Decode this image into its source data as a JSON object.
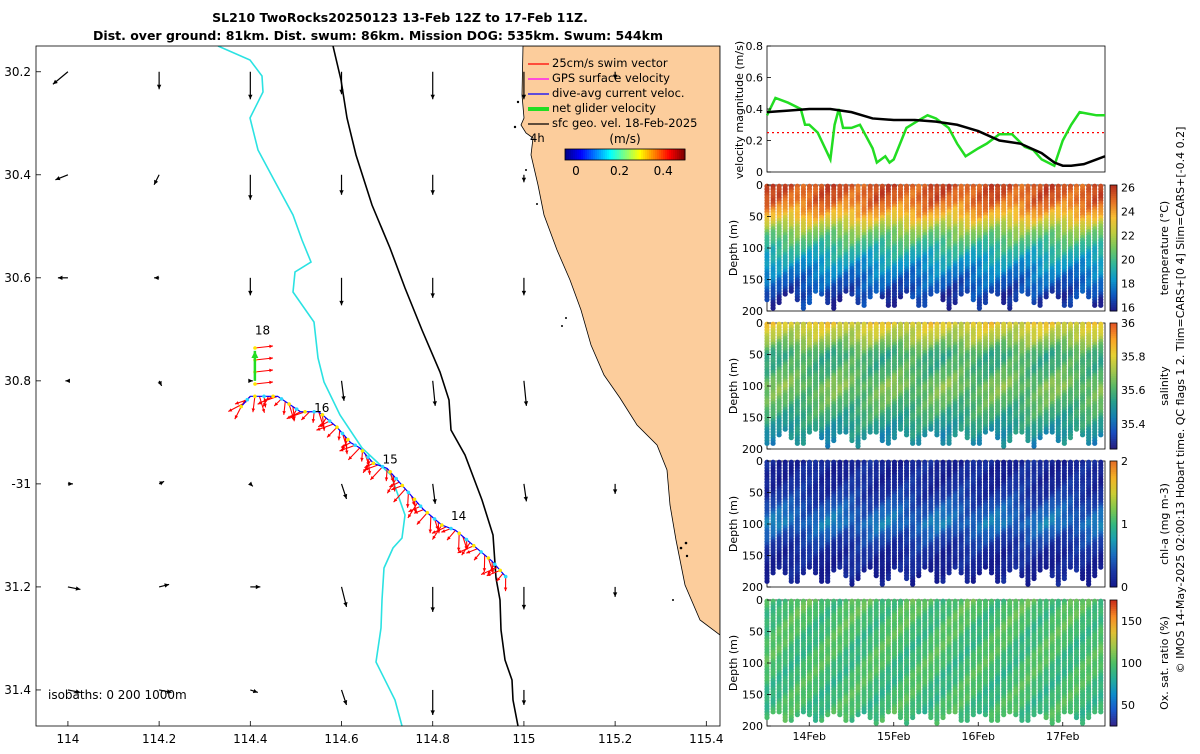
{
  "header": {
    "title_line1": "SL210 TwoRocks20250123 13-Feb 12Z to 17-Feb 11Z.",
    "title_line2": "Dist. over ground: 81km. Dist. swum: 86km. Mission DOG: 535km. Swum: 544km"
  },
  "side_caption": "© IMOS 14-May-2025 02:00:13 Hobart time. QC flags 1  2. Tlim=CARS+[0 4] Slim=CARS+[-0.4 0.2]",
  "colors": {
    "land": "#FCCD9C",
    "isobath_200": "#2BE2E2",
    "glider_track": "#FF0000",
    "net_velocity": "#22DD22",
    "threshold": "#FF0000"
  },
  "chart_data": [
    {
      "type": "map",
      "title": "SL210 TwoRocks20250123",
      "xlim": [
        113.93,
        115.43
      ],
      "ylim": [
        30.15,
        31.47
      ],
      "y_inverted": true,
      "x_ticks": [
        114,
        114.2,
        114.4,
        114.6,
        114.8,
        115,
        115.2,
        115.4
      ],
      "x_tick_labels": [
        "114",
        "114.2",
        "114.4",
        "114.6",
        "114.8",
        "115",
        "115.2",
        "115.4"
      ],
      "y_ticks": [
        30.2,
        30.4,
        30.6,
        30.8,
        31,
        31.2,
        31.4
      ],
      "y_tick_labels": [
        "30.2",
        "30.4",
        "30.6",
        "30.8",
        "-31",
        "31.2",
        "31.4"
      ],
      "legend": [
        {
          "label": "25cm/s swim vector",
          "color": "#FF0000"
        },
        {
          "label": "GPS surface velocity",
          "color": "#FF00FF"
        },
        {
          "label": "dive-avg current veloc.",
          "color": "#0000FF"
        },
        {
          "label": "net glider velocity",
          "color": "#22DD22"
        },
        {
          "label": "sfc geo. vel. 18-Feb-2025",
          "color": "#000000"
        }
      ],
      "legend_annotation": "4h",
      "colorbar": {
        "label": "(m/s)",
        "ticks": [
          0,
          0.2,
          0.4
        ],
        "range": [
          -0.05,
          0.5
        ]
      },
      "isobaths_label": "isobaths: 0   200  1000m",
      "track_day_labels": [
        {
          "label": "18",
          "lon": 114.41,
          "lat": 30.71
        },
        {
          "label": "16",
          "lon": 114.54,
          "lat": 30.86
        },
        {
          "label": "15",
          "lon": 114.69,
          "lat": 30.96
        },
        {
          "label": "14",
          "lon": 114.84,
          "lat": 31.07
        }
      ],
      "track": [
        [
          114.38,
          30.85
        ],
        [
          114.4,
          30.83
        ],
        [
          114.46,
          30.83
        ],
        [
          114.51,
          30.86
        ],
        [
          114.55,
          30.86
        ],
        [
          114.59,
          30.89
        ],
        [
          114.62,
          30.92
        ],
        [
          114.64,
          30.93
        ],
        [
          114.67,
          30.96
        ],
        [
          114.7,
          30.97
        ],
        [
          114.74,
          31.01
        ],
        [
          114.78,
          31.05
        ],
        [
          114.82,
          31.08
        ],
        [
          114.85,
          31.09
        ],
        [
          114.89,
          31.12
        ],
        [
          114.93,
          31.15
        ],
        [
          114.96,
          31.18
        ]
      ],
      "net_velocity_arrow": {
        "lon": 114.41,
        "lat": 30.8,
        "u": 0,
        "v": 0.12
      },
      "geo_vectors": [
        {
          "lon": 114.0,
          "lat": 30.2,
          "u": -0.06,
          "v": -0.05
        },
        {
          "lon": 114.2,
          "lat": 30.2,
          "u": 0.0,
          "v": -0.07
        },
        {
          "lon": 114.4,
          "lat": 30.2,
          "u": 0.0,
          "v": -0.11
        },
        {
          "lon": 114.6,
          "lat": 30.2,
          "u": 0.0,
          "v": -0.09
        },
        {
          "lon": 114.8,
          "lat": 30.2,
          "u": 0.0,
          "v": -0.11
        },
        {
          "lon": 115.0,
          "lat": 30.2,
          "u": 0.0,
          "v": -0.11
        },
        {
          "lon": 115.2,
          "lat": 30.2,
          "u": 0.0,
          "v": -0.03
        },
        {
          "lon": 114.0,
          "lat": 30.4,
          "u": -0.05,
          "v": -0.02
        },
        {
          "lon": 114.2,
          "lat": 30.4,
          "u": -0.02,
          "v": -0.04
        },
        {
          "lon": 114.4,
          "lat": 30.4,
          "u": 0.0,
          "v": -0.1
        },
        {
          "lon": 114.6,
          "lat": 30.4,
          "u": 0.0,
          "v": -0.08
        },
        {
          "lon": 114.8,
          "lat": 30.4,
          "u": 0.0,
          "v": -0.08
        },
        {
          "lon": 115.0,
          "lat": 30.4,
          "u": 0.0,
          "v": -0.03
        },
        {
          "lon": 114.0,
          "lat": 30.6,
          "u": -0.04,
          "v": 0.0
        },
        {
          "lon": 114.2,
          "lat": 30.6,
          "u": -0.02,
          "v": 0.0
        },
        {
          "lon": 114.4,
          "lat": 30.6,
          "u": 0.0,
          "v": -0.07
        },
        {
          "lon": 114.6,
          "lat": 30.6,
          "u": 0.0,
          "v": -0.11
        },
        {
          "lon": 114.8,
          "lat": 30.6,
          "u": 0.0,
          "v": -0.08
        },
        {
          "lon": 115.0,
          "lat": 30.6,
          "u": 0.0,
          "v": -0.07
        },
        {
          "lon": 114.0,
          "lat": 30.8,
          "u": -0.01,
          "v": 0.0
        },
        {
          "lon": 114.2,
          "lat": 30.8,
          "u": 0.01,
          "v": -0.02
        },
        {
          "lon": 114.4,
          "lat": 30.8,
          "u": 0.01,
          "v": 0.0
        },
        {
          "lon": 114.6,
          "lat": 30.8,
          "u": 0.01,
          "v": -0.08
        },
        {
          "lon": 114.8,
          "lat": 30.8,
          "u": 0.01,
          "v": -0.1
        },
        {
          "lon": 115.0,
          "lat": 30.8,
          "u": 0.01,
          "v": -0.1
        },
        {
          "lon": 114.0,
          "lat": 31.0,
          "u": 0.02,
          "v": 0.0
        },
        {
          "lon": 114.2,
          "lat": 31.0,
          "u": 0.02,
          "v": 0.01
        },
        {
          "lon": 114.4,
          "lat": 31.0,
          "u": 0.01,
          "v": -0.01
        },
        {
          "lon": 114.6,
          "lat": 31.0,
          "u": 0.02,
          "v": -0.06
        },
        {
          "lon": 114.8,
          "lat": 31.0,
          "u": 0.01,
          "v": -0.08
        },
        {
          "lon": 115.0,
          "lat": 31.0,
          "u": 0.01,
          "v": -0.07
        },
        {
          "lon": 115.2,
          "lat": 31.0,
          "u": 0.0,
          "v": -0.04
        },
        {
          "lon": 114.0,
          "lat": 31.2,
          "u": 0.05,
          "v": -0.01
        },
        {
          "lon": 114.2,
          "lat": 31.2,
          "u": 0.04,
          "v": 0.01
        },
        {
          "lon": 114.4,
          "lat": 31.2,
          "u": 0.04,
          "v": 0.0
        },
        {
          "lon": 114.6,
          "lat": 31.2,
          "u": 0.02,
          "v": -0.08
        },
        {
          "lon": 114.8,
          "lat": 31.2,
          "u": 0.0,
          "v": -0.1
        },
        {
          "lon": 115.0,
          "lat": 31.2,
          "u": 0.0,
          "v": -0.09
        },
        {
          "lon": 115.2,
          "lat": 31.2,
          "u": 0.0,
          "v": -0.04
        },
        {
          "lon": 114.0,
          "lat": 31.4,
          "u": 0.05,
          "v": -0.01
        },
        {
          "lon": 114.2,
          "lat": 31.4,
          "u": 0.05,
          "v": -0.01
        },
        {
          "lon": 114.4,
          "lat": 31.4,
          "u": 0.03,
          "v": -0.01
        },
        {
          "lon": 114.6,
          "lat": 31.4,
          "u": 0.02,
          "v": -0.06
        },
        {
          "lon": 114.8,
          "lat": 31.4,
          "u": 0.0,
          "v": -0.1
        },
        {
          "lon": 115.0,
          "lat": 31.4,
          "u": 0.0,
          "v": -0.06
        }
      ]
    },
    {
      "type": "line",
      "title": "",
      "xlabel": "",
      "ylabel": "velocity magnitude (m/s)",
      "xlim": [
        13.5,
        17.5
      ],
      "ylim": [
        0,
        0.8
      ],
      "y_ticks": [
        0,
        0.2,
        0.4,
        0.6,
        0.8
      ],
      "y_tick_labels": [
        "0",
        "0.2",
        "0.4",
        "0.6",
        "0.8"
      ],
      "series": [
        {
          "name": "net glider velocity",
          "color": "#22DD22",
          "x": [
            13.5,
            13.6,
            13.75,
            13.9,
            13.95,
            14.0,
            14.1,
            14.25,
            14.3,
            14.35,
            14.4,
            14.5,
            14.6,
            14.75,
            14.8,
            14.9,
            14.95,
            15.0,
            15.15,
            15.3,
            15.4,
            15.5,
            15.65,
            15.75,
            15.85,
            16.0,
            16.1,
            16.25,
            16.4,
            16.55,
            16.65,
            16.75,
            16.9,
            17.0,
            17.1,
            17.2,
            17.3,
            17.4,
            17.5
          ],
          "y": [
            0.36,
            0.47,
            0.44,
            0.4,
            0.3,
            0.3,
            0.25,
            0.08,
            0.3,
            0.4,
            0.28,
            0.28,
            0.3,
            0.15,
            0.06,
            0.1,
            0.06,
            0.08,
            0.28,
            0.33,
            0.36,
            0.34,
            0.28,
            0.18,
            0.1,
            0.15,
            0.18,
            0.24,
            0.24,
            0.16,
            0.14,
            0.08,
            0.04,
            0.2,
            0.3,
            0.38,
            0.37,
            0.36,
            0.36
          ]
        },
        {
          "name": "sfc geo. vel.",
          "color": "#000000",
          "x": [
            13.5,
            13.75,
            14.0,
            14.25,
            14.5,
            14.75,
            15.0,
            15.25,
            15.5,
            15.75,
            16.0,
            16.25,
            16.5,
            16.75,
            16.9,
            17.0,
            17.1,
            17.25,
            17.4,
            17.5
          ],
          "y": [
            0.38,
            0.39,
            0.4,
            0.4,
            0.38,
            0.34,
            0.33,
            0.33,
            0.32,
            0.3,
            0.26,
            0.2,
            0.18,
            0.12,
            0.06,
            0.04,
            0.04,
            0.05,
            0.08,
            0.1
          ]
        }
      ],
      "reference_line": {
        "name": "threshold",
        "y": 0.25,
        "color": "#FF0000",
        "style": "dotted"
      }
    },
    {
      "type": "heatmap",
      "ylabel": "Depth (m)",
      "colorbar_label": "temperature (°C)",
      "xlim": [
        13.5,
        17.5
      ],
      "ylim": [
        200,
        0
      ],
      "y_ticks": [
        0,
        50,
        100,
        150,
        200
      ],
      "y_tick_labels": [
        "0",
        "50",
        "100",
        "150",
        "200"
      ],
      "color_range": [
        15.7,
        26.2
      ],
      "colorbar_ticks": [
        16,
        18,
        20,
        22,
        24,
        26
      ],
      "colorbar_tick_labels": [
        "16",
        "18",
        "20",
        "22",
        "24",
        "26"
      ],
      "profile_start_day": 13.5,
      "profile_end_day": 17.45,
      "profile_count": 56,
      "max_depth_min": 170,
      "max_depth_max": 196,
      "depth_levels": [
        0,
        25,
        50,
        75,
        100,
        125,
        150,
        175,
        200
      ],
      "level_values": [
        25.6,
        25.2,
        23.6,
        21.2,
        19.6,
        18.4,
        17.3,
        16.4,
        16
      ]
    },
    {
      "type": "heatmap",
      "ylabel": "Depth (m)",
      "colorbar_label": "salinity",
      "xlim": [
        13.5,
        17.5
      ],
      "ylim": [
        200,
        0
      ],
      "y_ticks": [
        0,
        50,
        100,
        150,
        200
      ],
      "y_tick_labels": [
        "0",
        "50",
        "100",
        "150",
        "200"
      ],
      "color_range": [
        35.25,
        36.0
      ],
      "colorbar_ticks": [
        35.4,
        35.6,
        35.8,
        36
      ],
      "colorbar_tick_labels": [
        "35.4",
        "35.6",
        "35.8",
        "36"
      ],
      "profile_start_day": 13.5,
      "profile_end_day": 17.45,
      "profile_count": 56,
      "max_depth_min": 172,
      "max_depth_max": 196,
      "depth_levels": [
        0,
        25,
        50,
        75,
        100,
        125,
        150,
        175,
        200
      ],
      "level_values": [
        35.82,
        35.72,
        35.58,
        35.6,
        35.66,
        35.62,
        35.56,
        35.5,
        35.46
      ]
    },
    {
      "type": "heatmap",
      "ylabel": "Depth (m)",
      "colorbar_label": "chl-a (mg m-3)",
      "xlim": [
        13.5,
        17.5
      ],
      "ylim": [
        200,
        0
      ],
      "y_ticks": [
        0,
        50,
        100,
        150,
        200
      ],
      "y_tick_labels": [
        "0",
        "50",
        "100",
        "150",
        "200"
      ],
      "color_range": [
        0,
        2
      ],
      "colorbar_ticks": [
        0,
        1,
        2
      ],
      "colorbar_tick_labels": [
        "0",
        "1",
        "2"
      ],
      "profile_start_day": 13.5,
      "profile_end_day": 17.45,
      "profile_count": 56,
      "max_depth_min": 170,
      "max_depth_max": 196,
      "depth_levels": [
        0,
        25,
        50,
        75,
        100,
        125,
        150,
        175,
        200
      ],
      "level_values": [
        0.1,
        0.12,
        0.2,
        0.4,
        0.55,
        0.3,
        0.12,
        0.08,
        0.05
      ]
    },
    {
      "type": "heatmap",
      "ylabel": "Depth (m)",
      "colorbar_label": "Ox. sat. ratio (%)",
      "xlim": [
        13.5,
        17.5
      ],
      "ylim": [
        200,
        0
      ],
      "y_ticks": [
        0,
        50,
        100,
        150,
        200
      ],
      "y_tick_labels": [
        "0",
        "50",
        "100",
        "150",
        "200"
      ],
      "x_ticks": [
        14,
        15,
        16,
        17
      ],
      "x_tick_labels": [
        "14Feb",
        "15Feb",
        "16Feb",
        "17Feb"
      ],
      "color_range": [
        25,
        175
      ],
      "colorbar_ticks": [
        50,
        100,
        150
      ],
      "colorbar_tick_labels": [
        "50",
        "100",
        "150"
      ],
      "profile_start_day": 13.5,
      "profile_end_day": 17.45,
      "profile_count": 56,
      "max_depth_min": 178,
      "max_depth_max": 196,
      "depth_levels": [
        0,
        25,
        50,
        75,
        100,
        125,
        150,
        175,
        200
      ],
      "level_values": [
        100,
        98,
        97,
        96,
        96,
        95,
        95,
        95,
        95
      ]
    }
  ]
}
